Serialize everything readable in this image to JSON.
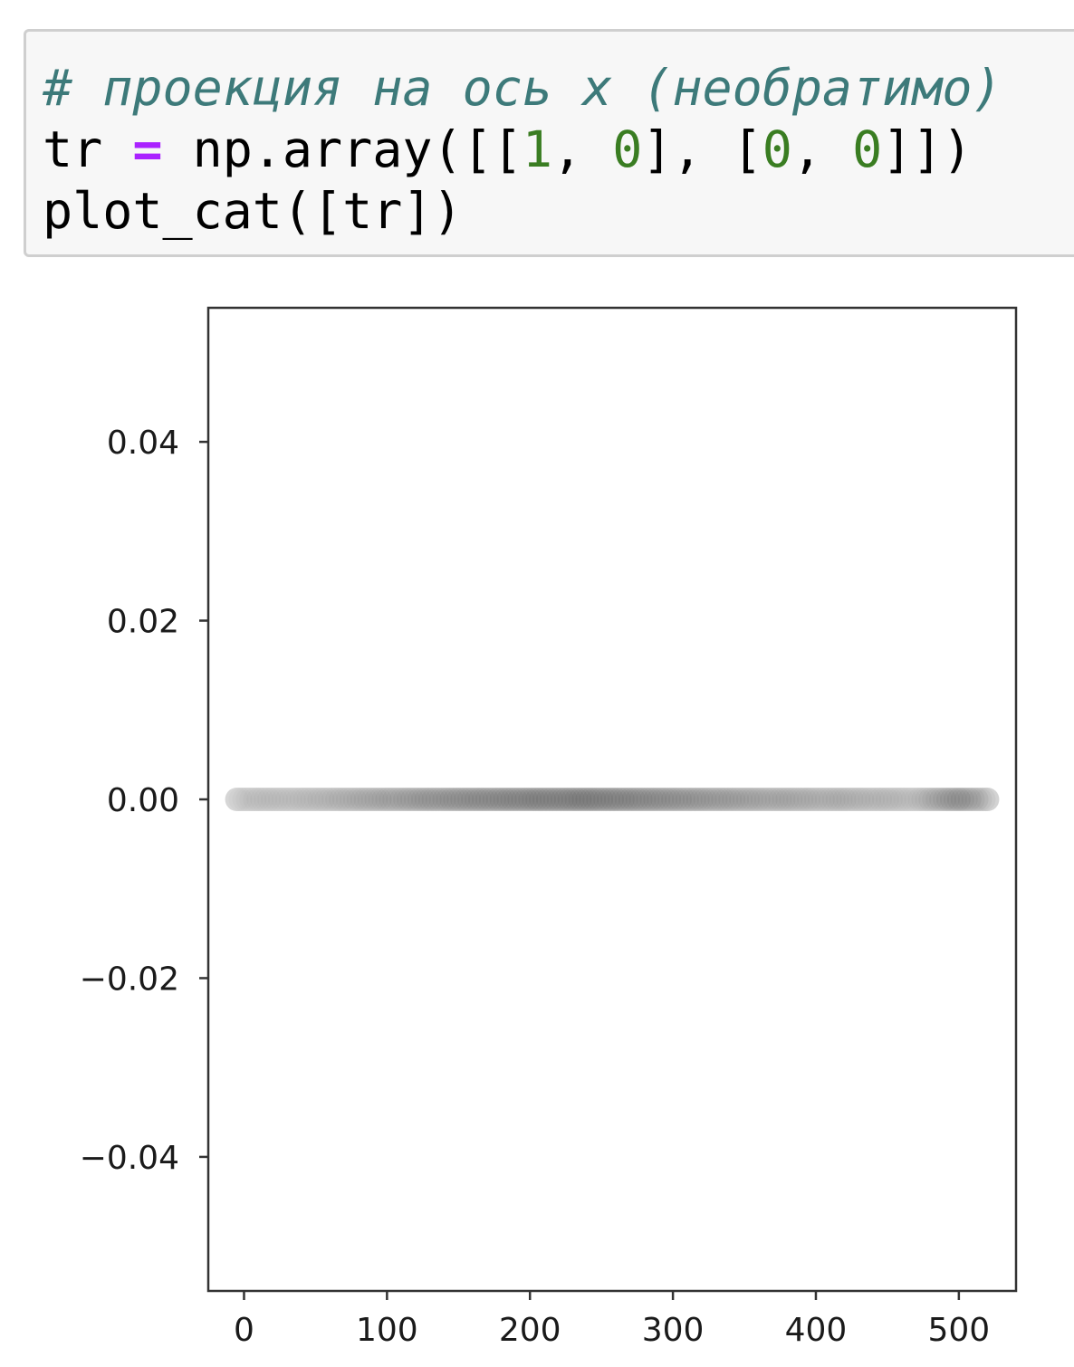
{
  "code_cell": {
    "lines": [
      [
        {
          "text": "# проекция на ось x (необратимо)",
          "kind": "comment"
        }
      ],
      [
        {
          "text": "tr ",
          "kind": "plain"
        },
        {
          "text": "=",
          "kind": "operator"
        },
        {
          "text": " np.array([[",
          "kind": "plain"
        },
        {
          "text": "1",
          "kind": "number"
        },
        {
          "text": ", ",
          "kind": "plain"
        },
        {
          "text": "0",
          "kind": "number"
        },
        {
          "text": "], [",
          "kind": "plain"
        },
        {
          "text": "0",
          "kind": "number"
        },
        {
          "text": ", ",
          "kind": "plain"
        },
        {
          "text": "0",
          "kind": "number"
        },
        {
          "text": "]])",
          "kind": "plain"
        }
      ],
      [
        {
          "text": "plot_cat([tr])",
          "kind": "plain"
        }
      ]
    ],
    "colors": {
      "background": "#f7f7f7",
      "border": "#cfcfcf",
      "comment": "#3d7a7a",
      "operator": "#aa22ff",
      "number": "#3a7d22",
      "plain": "#000000"
    }
  },
  "chart_data": {
    "type": "scatter",
    "title": "",
    "xlabel": "",
    "ylabel": "",
    "xlim": [
      -25,
      540
    ],
    "ylim": [
      -0.055,
      0.055
    ],
    "x_ticks": [
      0,
      100,
      200,
      300,
      400,
      500
    ],
    "x_tick_labels": [
      "0",
      "100",
      "200",
      "300",
      "400",
      "500"
    ],
    "y_ticks": [
      0.04,
      0.02,
      0.0,
      -0.02,
      -0.04
    ],
    "y_tick_labels": [
      "0.04",
      "0.02",
      "0.00",
      "−0.02",
      "−0.04"
    ],
    "grid": false,
    "legend": "none",
    "marker_color": "#555555",
    "marker_alpha": 0.12,
    "points_x_range": [
      -5,
      520
    ],
    "points_y": 0.0,
    "density_profile": [
      {
        "x": -5,
        "shade": 0.18
      },
      {
        "x": 50,
        "shade": 0.25
      },
      {
        "x": 100,
        "shade": 0.45
      },
      {
        "x": 150,
        "shade": 0.65
      },
      {
        "x": 200,
        "shade": 0.8
      },
      {
        "x": 240,
        "shade": 0.88
      },
      {
        "x": 280,
        "shade": 0.72
      },
      {
        "x": 320,
        "shade": 0.55
      },
      {
        "x": 370,
        "shade": 0.4
      },
      {
        "x": 420,
        "shade": 0.32
      },
      {
        "x": 470,
        "shade": 0.22
      },
      {
        "x": 500,
        "shade": 0.7
      },
      {
        "x": 520,
        "shade": 0.3
      }
    ]
  }
}
